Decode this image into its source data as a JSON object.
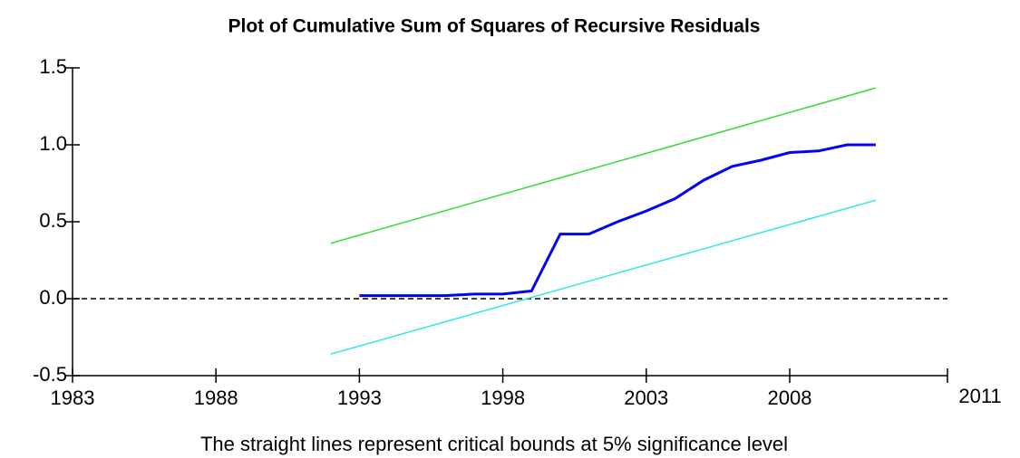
{
  "chart_data": {
    "type": "line",
    "title": "Plot of Cumulative Sum of Squares of Recursive Residuals",
    "x_label": "The straight lines represent critical bounds at 5% significance level",
    "x_end_label": "2011",
    "xlim": [
      1983,
      2013.5
    ],
    "xticks": [
      1983,
      1988,
      1993,
      1998,
      2003,
      2008
    ],
    "ylim": [
      -0.5,
      1.5
    ],
    "yticks": [
      {
        "value": -0.5,
        "label": "-0.5"
      },
      {
        "value": 0,
        "label": "0.0"
      },
      {
        "value": 0.5,
        "label": "0.5"
      },
      {
        "value": 1,
        "label": "1.0"
      },
      {
        "value": 1.5,
        "label": "1.5"
      }
    ],
    "zero_line": 0,
    "series": [
      {
        "color": "#0000ff",
        "x": [
          1993,
          1994,
          1995,
          1996,
          1997,
          1998,
          1999,
          2000,
          2001,
          2002,
          2003,
          2004,
          2005,
          2006,
          2007,
          2008,
          2009,
          2010,
          2011
        ],
        "values": [
          0.02,
          0.02,
          0.02,
          0.02,
          0.03,
          0.03,
          0.05,
          0.42,
          0.42,
          0.5,
          0.57,
          0.65,
          0.77,
          0.86,
          0.9,
          0.95,
          0.96,
          1.0,
          1.0
        ]
      },
      {
        "color": "#33dd33",
        "x": [
          1992,
          2011
        ],
        "values": [
          0.36,
          1.37
        ]
      },
      {
        "color": "#33e6e6",
        "x": [
          1992,
          2011
        ],
        "values": [
          -0.36,
          0.64
        ]
      }
    ]
  }
}
